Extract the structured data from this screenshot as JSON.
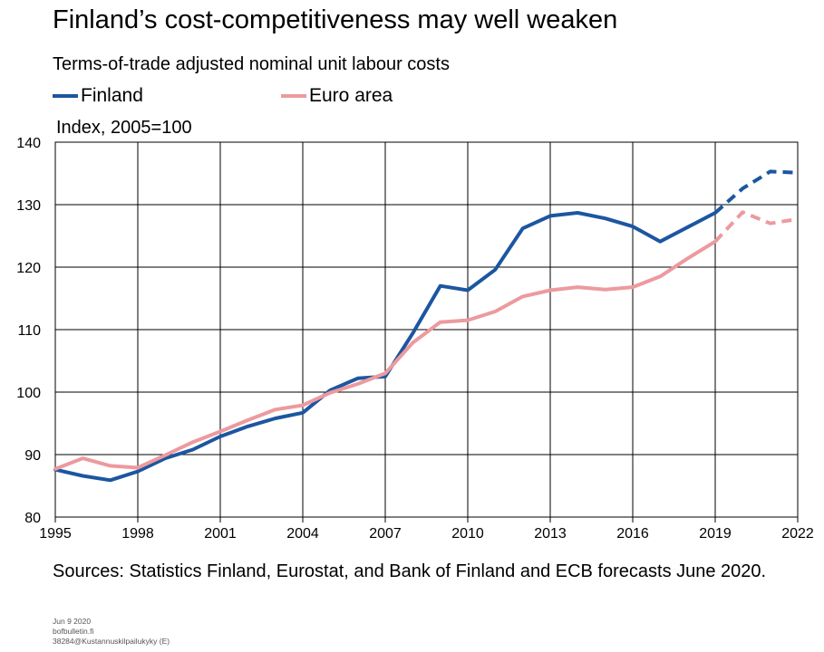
{
  "title": "Finland’s cost-competitiveness may well weaken",
  "subtitle": "Terms-of-trade adjusted nominal unit labour costs",
  "legend": [
    {
      "name": "Finland",
      "color": "#1c56a0"
    },
    {
      "name": "Euro area",
      "color": "#ec9a9e"
    }
  ],
  "y_axis_label": "Index, 2005=100",
  "sources": "Sources: Statistics Finland,  Eurostat, and Bank of Finland and ECB forecasts June 2020.",
  "footnote": [
    "Jun 9 2020",
    "bofbulletin.fi",
    "38284@Kustannuskilpailukyky (E)"
  ],
  "chart_data": {
    "type": "line",
    "x": [
      1995,
      1996,
      1997,
      1998,
      1999,
      2000,
      2001,
      2002,
      2003,
      2004,
      2005,
      2006,
      2007,
      2008,
      2009,
      2010,
      2011,
      2012,
      2013,
      2014,
      2015,
      2016,
      2017,
      2018,
      2019,
      2020,
      2021,
      2022
    ],
    "xticks": [
      1995,
      1998,
      2001,
      2004,
      2007,
      2010,
      2013,
      2016,
      2019,
      2022
    ],
    "xlim": [
      1995,
      2022
    ],
    "ylim": [
      80,
      140
    ],
    "yticks": [
      80,
      90,
      100,
      110,
      120,
      130,
      140
    ],
    "grid": true,
    "forecast_from": 2019,
    "series": [
      {
        "name": "Finland",
        "color": "#1c56a0",
        "values": [
          87.6,
          86.6,
          85.9,
          87.3,
          89.4,
          90.8,
          92.9,
          94.5,
          95.8,
          96.7,
          100.3,
          102.2,
          102.5,
          109.4,
          117.0,
          116.3,
          119.6,
          126.2,
          128.2,
          128.7,
          127.8,
          126.5,
          124.1,
          126.4,
          128.7,
          132.6,
          135.3,
          135.1
        ]
      },
      {
        "name": "Euro area",
        "color": "#ec9a9e",
        "values": [
          87.7,
          89.4,
          88.2,
          87.9,
          89.9,
          92.0,
          93.7,
          95.5,
          97.2,
          97.9,
          99.9,
          101.3,
          103.0,
          107.9,
          111.2,
          111.5,
          112.9,
          115.3,
          116.3,
          116.8,
          116.4,
          116.8,
          118.5,
          121.4,
          124.1,
          128.8,
          127.0,
          127.7
        ]
      }
    ]
  }
}
